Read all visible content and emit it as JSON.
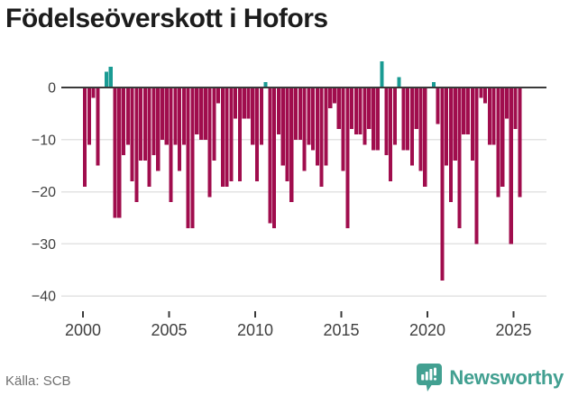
{
  "title": "Födelseöverskott i Hofors",
  "source": "Källa: SCB",
  "branding": {
    "logo_text": "Newsworthy"
  },
  "colors": {
    "title": "#1c1c1c",
    "negative_bar": "#a00d4d",
    "positive_bar": "#1a9b93",
    "zero_axis": "#3a3a3a",
    "gridline": "#e3e3e3",
    "tick_label": "#404040",
    "source_text": "#707070",
    "brand": "#42a091"
  },
  "chart_data": {
    "type": "bar",
    "title": "Födelseöverskott i Hofors",
    "x_unit": "quarter",
    "start_year": 2000,
    "start_quarter": 1,
    "end_year": 2025,
    "end_quarter": 2,
    "x_tick_labels": [
      "2000",
      "2005",
      "2010",
      "2015",
      "2020",
      "2025"
    ],
    "y_tick_values": [
      0,
      -10,
      -20,
      -30,
      -40
    ],
    "y_tick_labels": [
      "0",
      "−10",
      "−20",
      "−30",
      "−40"
    ],
    "ylim": [
      -40,
      6
    ],
    "grid": true,
    "legend": "none",
    "values": [
      -19,
      -11,
      -2,
      -15,
      0,
      3,
      4,
      -25,
      -25,
      -13,
      -11,
      -18,
      -22,
      -14,
      -14,
      -19,
      -13,
      -16,
      -10,
      -11,
      -22,
      -11,
      -16,
      -11,
      -27,
      -27,
      -9,
      -10,
      -10,
      -21,
      -14,
      -3,
      -19,
      -19,
      -18,
      -6,
      -18,
      -6,
      -6,
      -11,
      -18,
      -11,
      1,
      -26,
      -27,
      -9,
      -15,
      -18,
      -22,
      -10,
      -10,
      -16,
      -11,
      -12,
      -15,
      -19,
      -15,
      -4,
      -3,
      -8,
      -16,
      -27,
      -8,
      -9,
      -9,
      -11,
      -8,
      -12,
      -12,
      5,
      -13,
      -18,
      -11,
      2,
      -12,
      -12,
      -15,
      -8,
      -16,
      -19,
      0,
      1,
      -7,
      -37,
      -15,
      -22,
      -14,
      -27,
      -9,
      -9,
      -14,
      -30,
      -2,
      -3,
      -11,
      -11,
      -21,
      -19,
      -6,
      -30,
      -8,
      -21
    ]
  }
}
